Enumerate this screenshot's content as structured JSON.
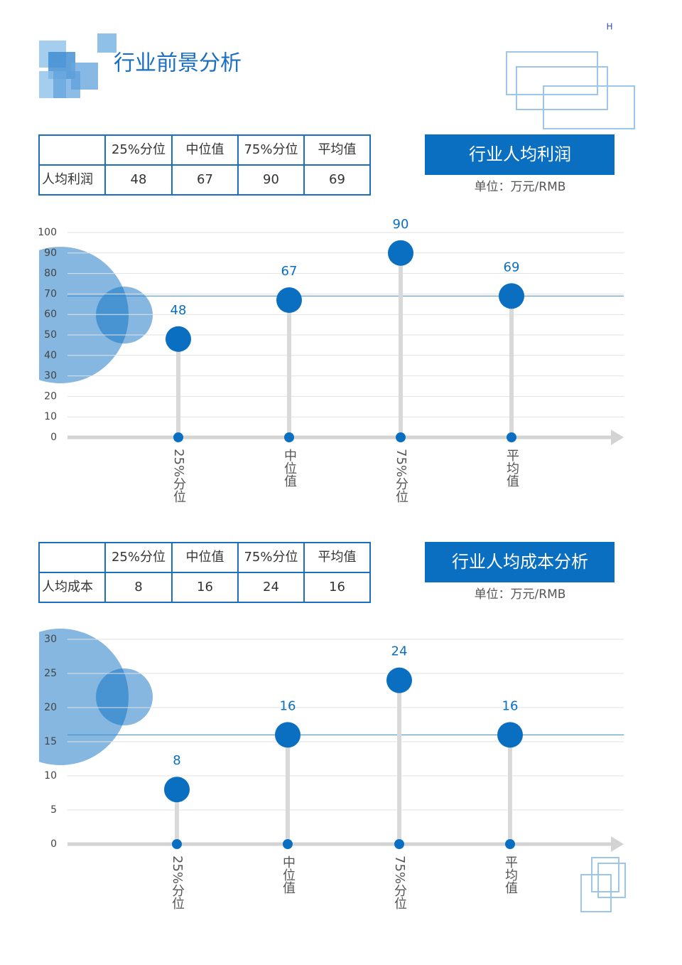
{
  "header": {
    "title": "行业前景分析",
    "mark": "H"
  },
  "sections": [
    {
      "table": {
        "columns": [
          "25%分位",
          "中位值",
          "75%分位",
          "平均值"
        ],
        "row_label": "人均利润",
        "row": [
          48,
          67,
          90,
          69
        ]
      },
      "title_box": "行业人均利润",
      "unit": "单位：万元/RMB"
    },
    {
      "table": {
        "columns": [
          "25%分位",
          "中位值",
          "75%分位",
          "平均值"
        ],
        "row_label": "人均成本",
        "row": [
          8,
          16,
          24,
          16
        ]
      },
      "title_box": "行业人均成本分析",
      "unit": "单位：万元/RMB"
    }
  ],
  "chart_data": [
    {
      "type": "lollipop",
      "categories": [
        "25%分位",
        "中位值",
        "75%分位",
        "平均值"
      ],
      "values": [
        48,
        67,
        90,
        69
      ],
      "color": "#0b6fc1",
      "ylim": [
        0,
        100
      ],
      "yticks": [
        0,
        10,
        20,
        30,
        40,
        50,
        60,
        70,
        80,
        90,
        100
      ],
      "grid": true
    },
    {
      "type": "lollipop",
      "categories": [
        "25%分位",
        "中位值",
        "75%分位",
        "平均值"
      ],
      "values": [
        8,
        16,
        24,
        16
      ],
      "color": "#0b6fc1",
      "ylim": [
        0,
        30
      ],
      "yticks": [
        0,
        5,
        10,
        15,
        20,
        25,
        30
      ],
      "grid": true
    }
  ]
}
